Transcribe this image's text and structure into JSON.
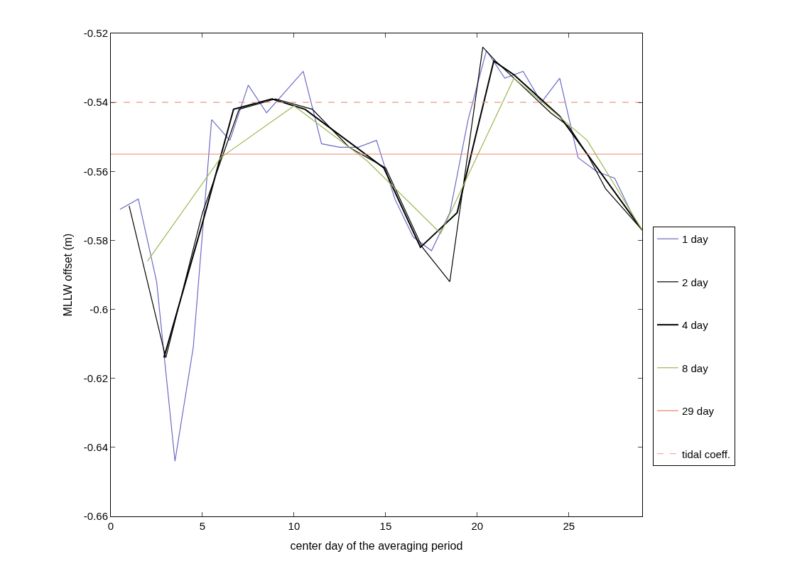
{
  "chart_data": {
    "type": "line",
    "xlabel": "center day of the averaging period",
    "ylabel": "MLLW offset (m)",
    "xlim": [
      0,
      29
    ],
    "xticks": [
      0,
      5,
      10,
      15,
      20,
      25
    ],
    "ylim": [
      -0.66,
      -0.52
    ],
    "yticks": [
      -0.66,
      -0.64,
      -0.62,
      -0.6,
      -0.58,
      -0.56,
      -0.54,
      -0.52
    ],
    "grid": false,
    "legend": "right",
    "marker": "none",
    "series": [
      {
        "name": "1 day",
        "color": "#6a6ac8",
        "x": [
          0.5,
          1.5,
          2.5,
          3.5,
          4.5,
          5.5,
          6.5,
          7.5,
          8.5,
          9.5,
          10.5,
          11.5,
          12.5,
          13.5,
          14.5,
          15.5,
          16.5,
          17.5,
          18.5,
          19.5,
          20.5,
          21.5,
          22.5,
          23.5,
          24.5,
          25.5,
          26.5,
          27.5,
          28.5
        ],
        "values": [
          -0.571,
          -0.568,
          -0.592,
          -0.644,
          -0.611,
          -0.545,
          -0.551,
          -0.535,
          -0.543,
          -0.537,
          -0.531,
          -0.552,
          -0.553,
          -0.553,
          -0.551,
          -0.568,
          -0.579,
          -0.583,
          -0.572,
          -0.545,
          -0.525,
          -0.533,
          -0.531,
          -0.54,
          -0.533,
          -0.556,
          -0.56,
          -0.562,
          -0.573
        ]
      },
      {
        "name": "2 day",
        "color": "#000000",
        "x": [
          1,
          3,
          5,
          7,
          9,
          11,
          13,
          15,
          17,
          18.5,
          20.3,
          21,
          22,
          23,
          24,
          25,
          26,
          27,
          29
        ],
        "values": [
          -0.57,
          -0.614,
          -0.572,
          -0.542,
          -0.539,
          -0.542,
          -0.553,
          -0.559,
          -0.582,
          -0.592,
          -0.524,
          -0.528,
          -0.533,
          -0.538,
          -0.543,
          -0.547,
          -0.555,
          -0.565,
          -0.577
        ]
      },
      {
        "name": "4 day",
        "color": "#000000",
        "x": [
          2.9,
          5,
          6.7,
          8.8,
          10.6,
          14.9,
          16.9,
          17.9,
          18.9,
          20.9,
          22,
          24.5,
          29
        ],
        "values": [
          -0.614,
          -0.575,
          -0.542,
          -0.539,
          -0.542,
          -0.559,
          -0.582,
          -0.577,
          -0.572,
          -0.528,
          -0.532,
          -0.544,
          -0.577
        ]
      },
      {
        "name": "8 day",
        "color": "#98b850",
        "x": [
          2,
          6,
          10,
          14,
          18,
          22,
          26,
          29
        ],
        "values": [
          -0.586,
          -0.556,
          -0.541,
          -0.557,
          -0.578,
          -0.533,
          -0.551,
          -0.577
        ]
      },
      {
        "name": "29 day",
        "color": "#f08070",
        "x": [
          0,
          29
        ],
        "values": [
          -0.555,
          -0.555
        ]
      },
      {
        "name": "tidal coeff.",
        "color": "#f09888",
        "line_style": "dashed",
        "x": [
          0,
          29
        ],
        "values": [
          -0.54,
          -0.54
        ]
      }
    ]
  }
}
